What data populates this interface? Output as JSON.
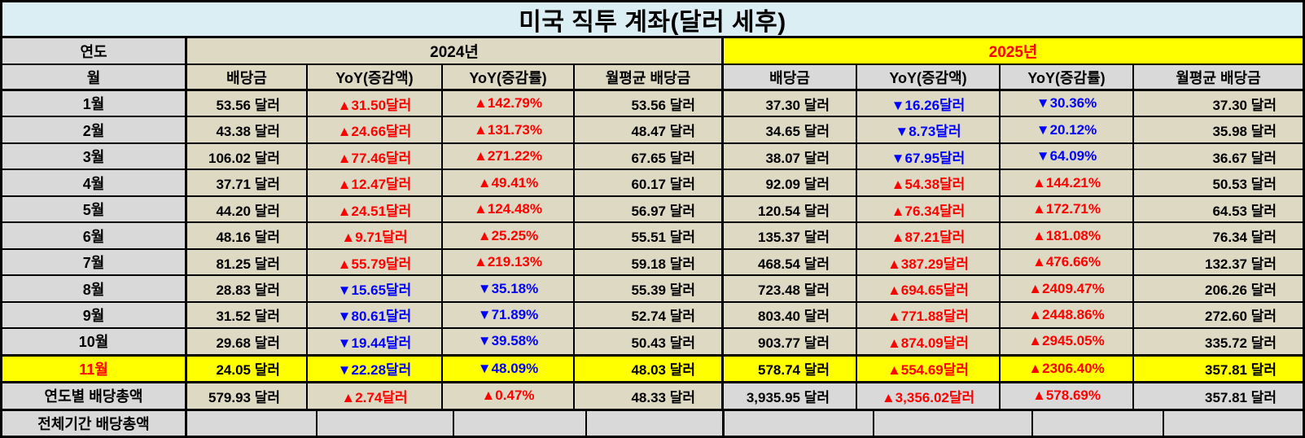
{
  "title": "미국 직투 계좌(달러 세후)",
  "header": {
    "year_label": "연도",
    "month_label": "월",
    "year_2024": "2024년",
    "year_2025": "2025년",
    "sub_headers": [
      "배당금",
      "YoY(증감액)",
      "YoY(증감률)",
      "월평균 배당금"
    ]
  },
  "colors": {
    "title_bg": "#daeef3",
    "beige_cell": "#ddd9c3",
    "gray_cell": "#d9d9d9",
    "highlight_yellow": "#ffff00",
    "increase_red": "#ff0000",
    "decrease_blue": "#0000ff"
  },
  "chart_data": {
    "type": "table",
    "title": "미국 직투 계좌(달러 세후)",
    "columns": [
      "월",
      "2024 배당금",
      "2024 YoY(증감액)",
      "2024 YoY(증감률)",
      "2024 월평균 배당금",
      "2025 배당금",
      "2025 YoY(증감액)",
      "2025 YoY(증감률)",
      "2025 월평균 배당금"
    ],
    "note": "values duplicated in rows[] below"
  },
  "rows": [
    {
      "label": "1월",
      "highlight": false,
      "cells": [
        "53.56 달러",
        "▲31.50달러",
        "▲142.79%",
        "53.56 달러",
        "37.30 달러",
        "▼16.26달러",
        "▼30.36%",
        "37.30 달러"
      ]
    },
    {
      "label": "2월",
      "highlight": false,
      "cells": [
        "43.38 달러",
        "▲24.66달러",
        "▲131.73%",
        "48.47 달러",
        "34.65 달러",
        "▼8.73달러",
        "▼20.12%",
        "35.98 달러"
      ]
    },
    {
      "label": "3월",
      "highlight": false,
      "cells": [
        "106.02 달러",
        "▲77.46달러",
        "▲271.22%",
        "67.65 달러",
        "38.07 달러",
        "▼67.95달러",
        "▼64.09%",
        "36.67 달러"
      ]
    },
    {
      "label": "4월",
      "highlight": false,
      "cells": [
        "37.71 달러",
        "▲12.47달러",
        "▲49.41%",
        "60.17 달러",
        "92.09 달러",
        "▲54.38달러",
        "▲144.21%",
        "50.53 달러"
      ]
    },
    {
      "label": "5월",
      "highlight": false,
      "cells": [
        "44.20 달러",
        "▲24.51달러",
        "▲124.48%",
        "56.97 달러",
        "120.54 달러",
        "▲76.34달러",
        "▲172.71%",
        "64.53 달러"
      ]
    },
    {
      "label": "6월",
      "highlight": false,
      "cells": [
        "48.16 달러",
        "▲9.71달러",
        "▲25.25%",
        "55.51 달러",
        "135.37 달러",
        "▲87.21달러",
        "▲181.08%",
        "76.34 달러"
      ]
    },
    {
      "label": "7월",
      "highlight": false,
      "cells": [
        "81.25 달러",
        "▲55.79달러",
        "▲219.13%",
        "59.18 달러",
        "468.54 달러",
        "▲387.29달러",
        "▲476.66%",
        "132.37 달러"
      ]
    },
    {
      "label": "8월",
      "highlight": false,
      "cells": [
        "28.83 달러",
        "▼15.65달러",
        "▼35.18%",
        "55.39 달러",
        "723.48 달러",
        "▲694.65달러",
        "▲2409.47%",
        "206.26 달러"
      ]
    },
    {
      "label": "9월",
      "highlight": false,
      "cells": [
        "31.52 달러",
        "▼80.61달러",
        "▼71.89%",
        "52.74 달러",
        "803.40 달러",
        "▲771.88달러",
        "▲2448.86%",
        "272.60 달러"
      ]
    },
    {
      "label": "10월",
      "highlight": false,
      "thick_bottom": true,
      "cells": [
        "29.68 달러",
        "▼19.44달러",
        "▼39.58%",
        "50.43 달러",
        "903.77 달러",
        "▲874.09달러",
        "▲2945.05%",
        "335.72 달러"
      ]
    },
    {
      "label": "11월",
      "highlight": true,
      "thick_bottom": true,
      "cells": [
        "24.05 달러",
        "▼22.28달러",
        "▼48.09%",
        "48.03 달러",
        "578.74 달러",
        "▲554.69달러",
        "▲2306.40%",
        "357.81 달러"
      ]
    },
    {
      "label": "연도별 배당총액",
      "type": "yearly_total",
      "thick_bottom": true,
      "cells": [
        "579.93 달러",
        "▲2.74달러",
        "▲0.47%",
        "48.33 달러",
        "3,935.95 달러",
        "▲3,356.02달러",
        "▲578.69%",
        "357.81 달러"
      ]
    },
    {
      "label": "전체기간 배당총액",
      "type": "grand_total",
      "cells": [
        "",
        "",
        "",
        "",
        "",
        "",
        "",
        ""
      ]
    }
  ],
  "column_kinds": [
    "amt",
    "yoy",
    "yoy",
    "amt",
    "amt",
    "yoy",
    "yoy",
    "amt"
  ],
  "column_names": [
    "dividend-2024",
    "yoy-amount-2024",
    "yoy-rate-2024",
    "monthly-avg-2024",
    "dividend-2025",
    "yoy-amount-2025",
    "yoy-rate-2025",
    "monthly-avg-2025"
  ]
}
